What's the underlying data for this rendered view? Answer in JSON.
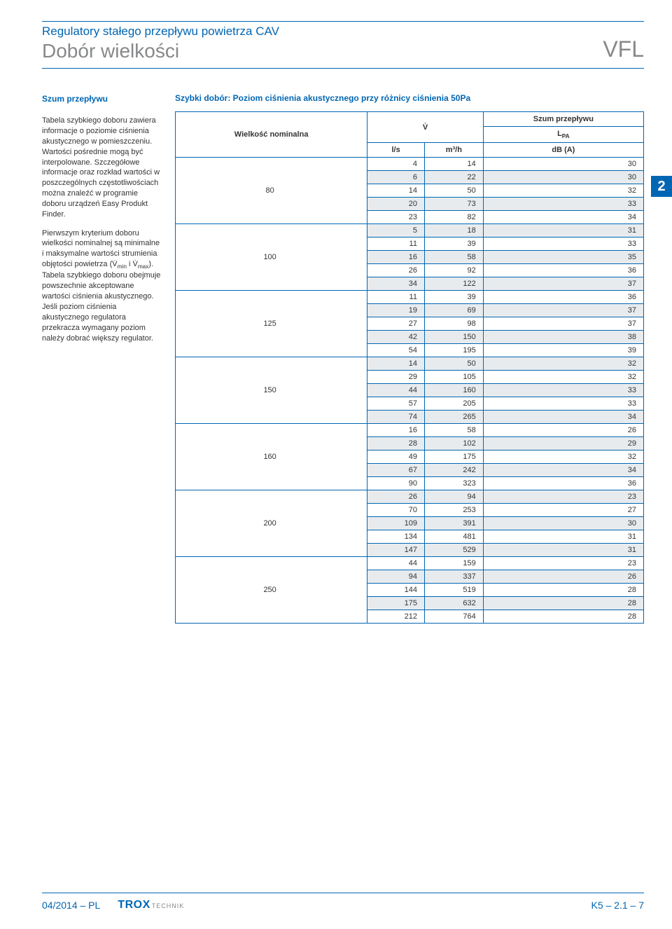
{
  "header": {
    "supertitle": "Regulatory stałego przepływu powietrza CAV",
    "title": "Dobór wielkości",
    "code": "VFL"
  },
  "sidebar": {
    "title": "Szum przepływu",
    "para1": "Tabela szybkiego doboru zawiera informacje o poziomie ciśnienia akustycznego w pomieszczeniu. Wartości pośrednie mogą być interpolowane. Szczegółowe informacje oraz rozkład wartości w poszczególnych częstotliwościach można znaleźć w programie doboru urządzeń Easy Produkt Finder.",
    "para2_a": "Pierwszym kryterium doboru wielkości nominalnej są minimalne i maksymalne wartości strumienia objętości powietrza (V̇",
    "para2_min": "min",
    "para2_b": " i V̇",
    "para2_max": "max",
    "para2_c": "). Tabela szybkiego doboru obejmuje powszechnie akceptowane wartości ciśnienia akustycznego. Jeśli poziom ciśnienia akustycznego regulatora przekracza wymagany poziom należy dobrać większy regulator."
  },
  "table": {
    "title": "Szybki dobór: Poziom ciśnienia akustycznego przy różnicy ciśnienia 50Pa",
    "col_size": "Wielkość nominalna",
    "col_v": "V̇",
    "col_noise": "Szum przepływu",
    "col_lpa": "L",
    "col_lpa_sub": "PA",
    "col_ls": "l/s",
    "col_m3h": "m³/h",
    "col_dba": "dB (A)",
    "groups": [
      {
        "size": "80",
        "rows": [
          [
            "4",
            "14",
            "30"
          ],
          [
            "6",
            "22",
            "30"
          ],
          [
            "14",
            "50",
            "32"
          ],
          [
            "20",
            "73",
            "33"
          ],
          [
            "23",
            "82",
            "34"
          ]
        ]
      },
      {
        "size": "100",
        "rows": [
          [
            "5",
            "18",
            "31"
          ],
          [
            "11",
            "39",
            "33"
          ],
          [
            "16",
            "58",
            "35"
          ],
          [
            "26",
            "92",
            "36"
          ],
          [
            "34",
            "122",
            "37"
          ]
        ]
      },
      {
        "size": "125",
        "rows": [
          [
            "11",
            "39",
            "36"
          ],
          [
            "19",
            "69",
            "37"
          ],
          [
            "27",
            "98",
            "37"
          ],
          [
            "42",
            "150",
            "38"
          ],
          [
            "54",
            "195",
            "39"
          ]
        ]
      },
      {
        "size": "150",
        "rows": [
          [
            "14",
            "50",
            "32"
          ],
          [
            "29",
            "105",
            "32"
          ],
          [
            "44",
            "160",
            "33"
          ],
          [
            "57",
            "205",
            "33"
          ],
          [
            "74",
            "265",
            "34"
          ]
        ]
      },
      {
        "size": "160",
        "rows": [
          [
            "16",
            "58",
            "26"
          ],
          [
            "28",
            "102",
            "29"
          ],
          [
            "49",
            "175",
            "32"
          ],
          [
            "67",
            "242",
            "34"
          ],
          [
            "90",
            "323",
            "36"
          ]
        ]
      },
      {
        "size": "200",
        "rows": [
          [
            "26",
            "94",
            "23"
          ],
          [
            "70",
            "253",
            "27"
          ],
          [
            "109",
            "391",
            "30"
          ],
          [
            "134",
            "481",
            "31"
          ],
          [
            "147",
            "529",
            "31"
          ]
        ]
      },
      {
        "size": "250",
        "rows": [
          [
            "44",
            "159",
            "23"
          ],
          [
            "94",
            "337",
            "26"
          ],
          [
            "144",
            "519",
            "28"
          ],
          [
            "175",
            "632",
            "28"
          ],
          [
            "212",
            "764",
            "28"
          ]
        ]
      }
    ]
  },
  "tab_number": "2",
  "footer": {
    "date": "04/2014 – PL",
    "logo_main": "TROX",
    "logo_sub": "TECHNIK",
    "page": "K5 – 2.1 – 7"
  },
  "colors": {
    "primary": "#0066b3",
    "grey": "#87888a",
    "stripe": "#e8ebee"
  }
}
